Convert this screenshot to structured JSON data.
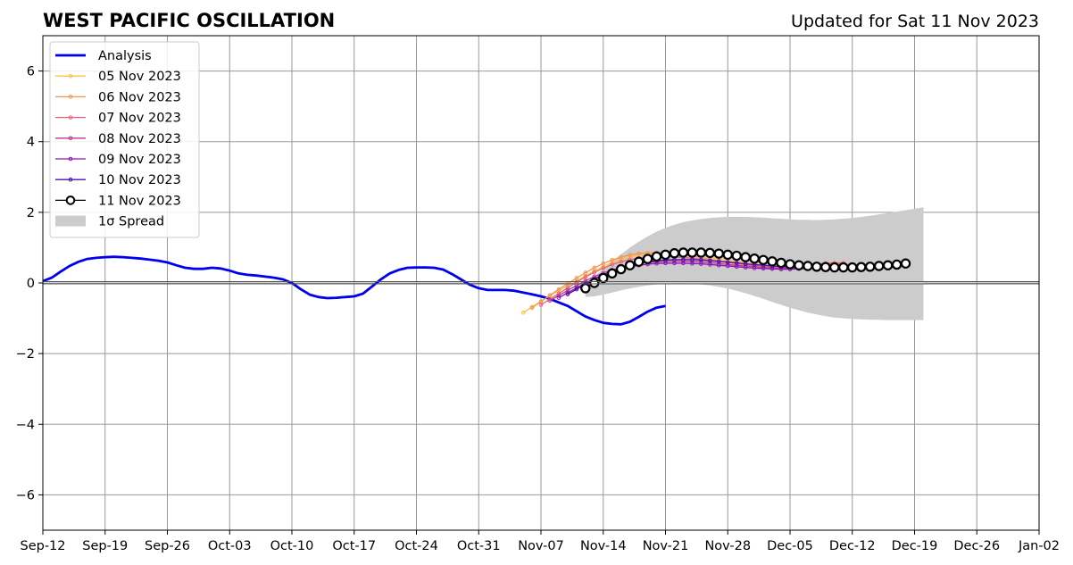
{
  "chart_data": {
    "type": "line",
    "title": "WEST PACIFIC OSCILLATION",
    "subtitle": "Updated for Sat 11 Nov 2023",
    "xlabel": "",
    "ylabel": "",
    "xlim": [
      "2023-09-12",
      "2024-01-02"
    ],
    "ylim": [
      -7,
      7
    ],
    "x_ticks": [
      "2023-09-12",
      "2023-09-19",
      "2023-09-26",
      "2023-10-03",
      "2023-10-10",
      "2023-10-17",
      "2023-10-24",
      "2023-10-31",
      "2023-11-07",
      "2023-11-14",
      "2023-11-21",
      "2023-11-28",
      "2023-12-05",
      "2023-12-12",
      "2023-12-19",
      "2023-12-26",
      "2024-01-02"
    ],
    "x_tick_labels": [
      "Sep-12",
      "Sep-19",
      "Sep-26",
      "Oct-03",
      "Oct-10",
      "Oct-17",
      "Oct-24",
      "Oct-31",
      "Nov-07",
      "Nov-14",
      "Nov-21",
      "Nov-28",
      "Dec-05",
      "Dec-12",
      "Dec-19",
      "Dec-26",
      "Jan-02"
    ],
    "y_ticks": [
      -6,
      -4,
      -2,
      0,
      2,
      4,
      6
    ],
    "y_tick_labels": [
      "−6",
      "−4",
      "−2",
      "0",
      "2",
      "4",
      "6"
    ],
    "grid": true,
    "legend_position": "top-left",
    "colors": {
      "analysis": "#0000ee",
      "spread": "#cccccc",
      "grid": "#999999",
      "zero_line": "#555555"
    },
    "analysis": {
      "name": "Analysis",
      "start": "2023-09-12",
      "values": [
        0.05,
        0.15,
        0.32,
        0.48,
        0.6,
        0.68,
        0.71,
        0.73,
        0.74,
        0.73,
        0.71,
        0.69,
        0.66,
        0.63,
        0.58,
        0.5,
        0.43,
        0.4,
        0.4,
        0.43,
        0.41,
        0.35,
        0.27,
        0.23,
        0.21,
        0.18,
        0.15,
        0.1,
        0.0,
        -0.18,
        -0.33,
        -0.4,
        -0.43,
        -0.42,
        -0.4,
        -0.38,
        -0.3,
        -0.1,
        0.1,
        0.27,
        0.37,
        0.43,
        0.44,
        0.44,
        0.43,
        0.38,
        0.25,
        0.1,
        -0.05,
        -0.15,
        -0.2,
        -0.2,
        -0.2,
        -0.22,
        -0.27,
        -0.32,
        -0.38,
        -0.45,
        -0.55,
        -0.65,
        -0.8,
        -0.95,
        -1.05,
        -1.13,
        -1.16,
        -1.17,
        -1.1,
        -0.96,
        -0.81,
        -0.7,
        -0.65
      ]
    },
    "forecasts": [
      {
        "name": "05 Nov 2023",
        "color": "#ffc048",
        "start": "2023-11-05",
        "values": [
          -0.84,
          -0.68,
          -0.52,
          -0.36,
          -0.22,
          -0.08,
          0.06,
          0.2,
          0.34,
          0.47,
          0.58,
          0.67,
          0.74,
          0.79,
          0.83,
          0.86,
          0.87,
          0.86,
          0.84,
          0.81,
          0.77,
          0.73,
          0.69,
          0.65,
          0.6,
          0.56,
          0.53,
          0.5,
          0.47,
          0.45,
          0.44,
          0.44,
          0.45,
          0.47,
          0.49,
          0.51,
          0.53
        ]
      },
      {
        "name": "06 Nov 2023",
        "color": "#f39553",
        "start": "2023-11-06",
        "values": [
          -0.7,
          -0.53,
          -0.35,
          -0.18,
          -0.02,
          0.14,
          0.29,
          0.43,
          0.55,
          0.65,
          0.73,
          0.79,
          0.83,
          0.85,
          0.86,
          0.85,
          0.83,
          0.8,
          0.76,
          0.72,
          0.67,
          0.63,
          0.59,
          0.55,
          0.52,
          0.5,
          0.48,
          0.47,
          0.47,
          0.48,
          0.5,
          0.52,
          0.54,
          0.56,
          0.57,
          0.57
        ]
      },
      {
        "name": "07 Nov 2023",
        "color": "#e5627c",
        "start": "2023-11-07",
        "values": [
          -0.62,
          -0.46,
          -0.3,
          -0.14,
          0.02,
          0.17,
          0.3,
          0.42,
          0.52,
          0.6,
          0.66,
          0.7,
          0.73,
          0.74,
          0.75,
          0.74,
          0.72,
          0.7,
          0.67,
          0.64,
          0.61,
          0.58,
          0.55,
          0.52,
          0.5,
          0.48,
          0.47,
          0.47,
          0.48,
          0.49,
          0.51,
          0.53,
          0.55,
          0.56,
          0.56
        ]
      },
      {
        "name": "08 Nov 2023",
        "color": "#b83a94",
        "start": "2023-11-08",
        "values": [
          -0.5,
          -0.36,
          -0.21,
          -0.07,
          0.06,
          0.18,
          0.28,
          0.37,
          0.44,
          0.5,
          0.55,
          0.58,
          0.6,
          0.62,
          0.62,
          0.62,
          0.61,
          0.59,
          0.57,
          0.55,
          0.52,
          0.5,
          0.48,
          0.46,
          0.44,
          0.43,
          0.42,
          0.42,
          0.43,
          0.44,
          0.46,
          0.48,
          0.5,
          0.51
        ]
      },
      {
        "name": "09 Nov 2023",
        "color": "#8a14b4",
        "start": "2023-11-09",
        "values": [
          -0.42,
          -0.28,
          -0.14,
          0.0,
          0.12,
          0.23,
          0.32,
          0.39,
          0.45,
          0.5,
          0.53,
          0.55,
          0.56,
          0.56,
          0.56,
          0.55,
          0.54,
          0.52,
          0.5,
          0.48,
          0.46,
          0.44,
          0.42,
          0.41,
          0.4,
          0.39,
          0.39,
          0.4,
          0.41,
          0.42,
          0.44,
          0.46,
          0.48
        ]
      },
      {
        "name": "10 Nov 2023",
        "color": "#4b0fa6",
        "start": "2023-11-10",
        "values": [
          -0.32,
          -0.18,
          -0.04,
          0.1,
          0.23,
          0.34,
          0.43,
          0.5,
          0.56,
          0.6,
          0.63,
          0.65,
          0.66,
          0.66,
          0.66,
          0.65,
          0.63,
          0.61,
          0.59,
          0.57,
          0.54,
          0.52,
          0.5,
          0.48,
          0.46,
          0.45,
          0.44,
          0.44,
          0.44,
          0.45,
          0.46,
          0.48
        ]
      },
      {
        "name": "11 Nov 2023",
        "color": "#000000",
        "start": "2023-11-12",
        "values": [
          -0.15,
          0.0,
          0.14,
          0.27,
          0.39,
          0.5,
          0.6,
          0.68,
          0.75,
          0.8,
          0.84,
          0.86,
          0.86,
          0.86,
          0.85,
          0.83,
          0.8,
          0.77,
          0.73,
          0.69,
          0.65,
          0.61,
          0.57,
          0.53,
          0.5,
          0.48,
          0.46,
          0.45,
          0.44,
          0.44,
          0.44,
          0.45,
          0.46,
          0.48,
          0.5,
          0.52,
          0.55
        ]
      }
    ],
    "spread": {
      "name": "1σ Spread",
      "start": "2023-11-12",
      "upper": [
        -0.05,
        0.18,
        0.4,
        0.61,
        0.81,
        1.0,
        1.17,
        1.32,
        1.45,
        1.56,
        1.65,
        1.72,
        1.77,
        1.81,
        1.84,
        1.86,
        1.87,
        1.87,
        1.87,
        1.86,
        1.85,
        1.83,
        1.82,
        1.8,
        1.79,
        1.79,
        1.78,
        1.79,
        1.8,
        1.82,
        1.84,
        1.87,
        1.9,
        1.94,
        1.98,
        2.02,
        2.06,
        2.1,
        2.14
      ],
      "lower": [
        -0.4,
        -0.38,
        -0.33,
        -0.27,
        -0.21,
        -0.16,
        -0.11,
        -0.07,
        -0.04,
        -0.02,
        -0.01,
        -0.01,
        -0.02,
        -0.04,
        -0.07,
        -0.11,
        -0.16,
        -0.22,
        -0.29,
        -0.37,
        -0.45,
        -0.54,
        -0.62,
        -0.7,
        -0.77,
        -0.84,
        -0.89,
        -0.94,
        -0.98,
        -1.0,
        -1.02,
        -1.03,
        -1.04,
        -1.04,
        -1.05,
        -1.05,
        -1.05,
        -1.05,
        -1.05
      ]
    }
  }
}
